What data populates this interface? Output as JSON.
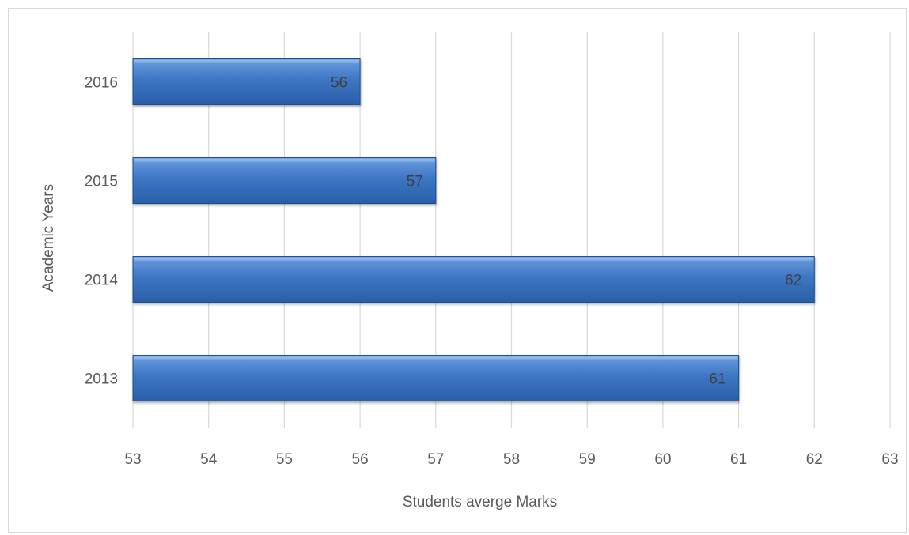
{
  "chart_data": {
    "type": "bar",
    "orientation": "horizontal",
    "categories": [
      "2013",
      "2014",
      "2015",
      "2016"
    ],
    "values": [
      61,
      62,
      57,
      56
    ],
    "data_labels": [
      "61",
      "62",
      "57",
      "56"
    ],
    "xlabel": "Students averge Marks",
    "ylabel": "Academic Years",
    "xlim": [
      53,
      63
    ],
    "x_ticks": [
      "53",
      "54",
      "55",
      "56",
      "57",
      "58",
      "59",
      "60",
      "61",
      "62",
      "63"
    ],
    "grid": "vertical",
    "legend": "none",
    "bar_color": "#3d76c4",
    "bar_color_light": "#6d9ee0",
    "bar_color_dark": "#1f4f8f"
  }
}
